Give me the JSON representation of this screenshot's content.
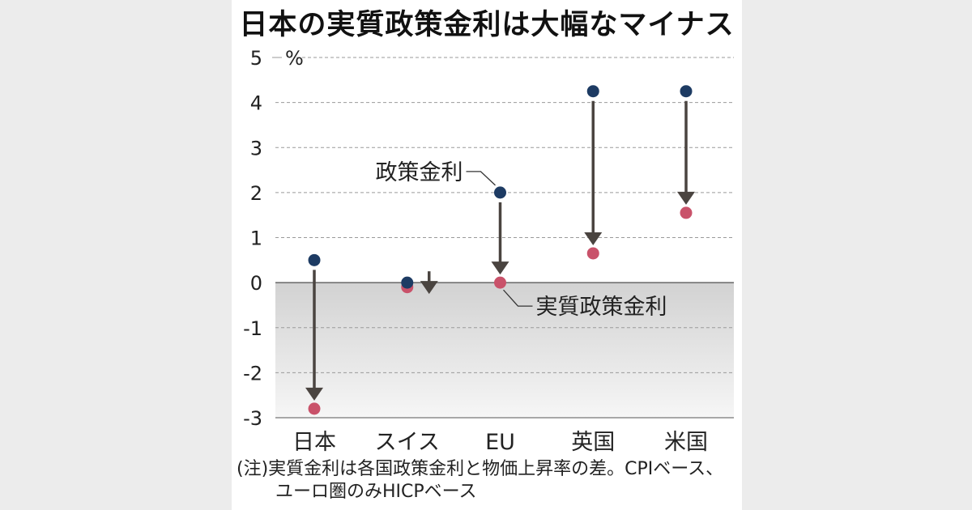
{
  "title": "日本の実質政策金利は大幅なマイナス",
  "chart_data": {
    "type": "scatter",
    "unit_label": "%",
    "categories": [
      "日本",
      "スイス",
      "EU",
      "英国",
      "米国"
    ],
    "series": [
      {
        "name": "政策金利",
        "values": [
          0.5,
          0.0,
          2.0,
          4.25,
          4.25
        ],
        "color": "#1d3b63"
      },
      {
        "name": "実質政策金利",
        "values": [
          -2.8,
          -0.1,
          0.0,
          0.65,
          1.55
        ],
        "color": "#c9526a"
      }
    ],
    "ylim": [
      -3,
      5
    ],
    "yticks": [
      "5",
      "4",
      "3",
      "2",
      "1",
      "0",
      "-1",
      "-2",
      "-3"
    ],
    "grid": true,
    "negative_region_shaded": true,
    "arrow_color": "#4a4440",
    "annotations": [
      {
        "text": "政策金利",
        "target": "EU"
      },
      {
        "text": "実質政策金利",
        "target": "EU"
      }
    ]
  },
  "note": {
    "line1": "(注)実質金利は各国政策金利と物価上昇率の差。CPIベース、",
    "line2": "ユーロ圏のみHICPベース"
  }
}
